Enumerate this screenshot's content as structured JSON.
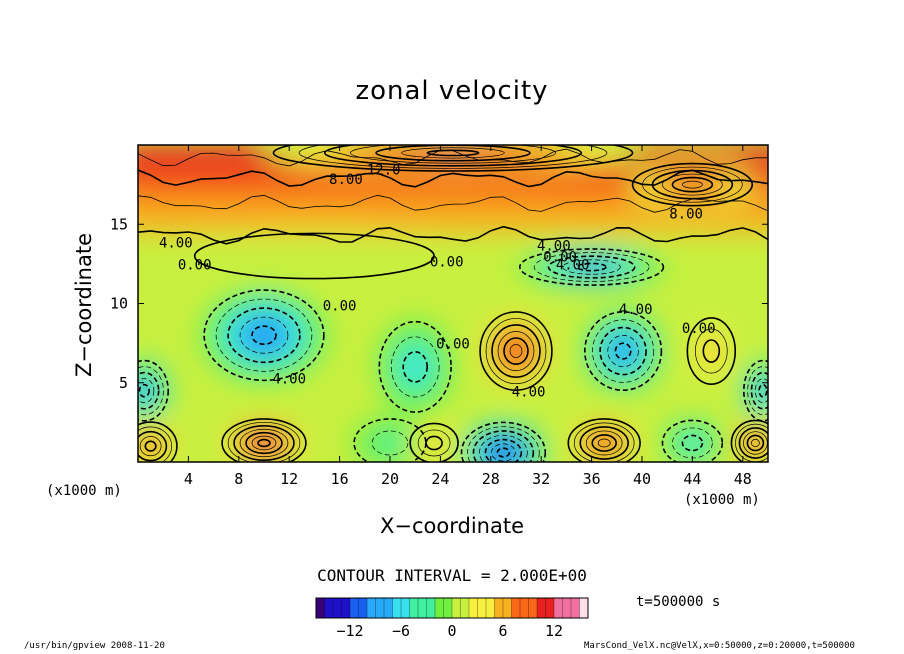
{
  "colors": {
    "background": "#ffffff",
    "axis": "#000000",
    "colormap": [
      "#3a007a",
      "#1e10c8",
      "#1860f0",
      "#28a8f8",
      "#38e0f0",
      "#40f0a0",
      "#70f040",
      "#c8f040",
      "#f8f040",
      "#f8b020",
      "#f86818",
      "#e82020",
      "#f070a0",
      "#fbe0ea"
    ]
  },
  "chart_data": {
    "type": "heatmap",
    "title": "zonal velocity",
    "xlabel": "X−coordinate",
    "ylabel": "Z−coordinate",
    "x_unit_label": "(x1000 m)",
    "x_unit_label_right": "(x1000 m)",
    "xlim": [
      0,
      50
    ],
    "ylim": [
      0,
      20
    ],
    "xticks": [
      4,
      8,
      12,
      16,
      20,
      24,
      28,
      32,
      36,
      40,
      44,
      48
    ],
    "yticks": [
      5,
      10,
      15
    ],
    "contour_interval": "CONTOUR INTERVAL = 2.000E+00",
    "colorbar": {
      "min": -16,
      "max": 16,
      "step": 1,
      "ticks": [
        -12,
        -6,
        0,
        6,
        12
      ]
    },
    "time_label": "t=500000 s",
    "features": [
      {
        "x": 10,
        "z": 8,
        "value": -10,
        "rx": 5,
        "rz": 3
      },
      {
        "x": 30,
        "z": 7,
        "value": 12,
        "rx": 3,
        "rz": 2.6
      },
      {
        "x": 38.5,
        "z": 7,
        "value": -10,
        "rx": 3.2,
        "rz": 2.6
      },
      {
        "x": 45.5,
        "z": 7,
        "value": 6,
        "rx": 2,
        "rz": 2.2
      },
      {
        "x": 22,
        "z": 6,
        "value": -6,
        "rx": 3,
        "rz": 3
      },
      {
        "x": 0.5,
        "z": 4.5,
        "value": -10,
        "rx": 2,
        "rz": 2
      },
      {
        "x": 49.6,
        "z": 4.5,
        "value": -10,
        "rx": 1.6,
        "rz": 2
      },
      {
        "x": 1,
        "z": 1,
        "value": 10,
        "rx": 2.2,
        "rz": 1.6
      },
      {
        "x": 10,
        "z": 1.2,
        "value": 14,
        "rx": 3.5,
        "rz": 1.6
      },
      {
        "x": 20,
        "z": 1.2,
        "value": -4,
        "rx": 3,
        "rz": 1.6
      },
      {
        "x": 23.5,
        "z": 1.2,
        "value": 6,
        "rx": 2,
        "rz": 1.3
      },
      {
        "x": 29,
        "z": 0.6,
        "value": -14,
        "rx": 3.5,
        "rz": 2
      },
      {
        "x": 37,
        "z": 1.2,
        "value": 12,
        "rx": 3,
        "rz": 1.6
      },
      {
        "x": 44,
        "z": 1.2,
        "value": -6,
        "rx": 2.5,
        "rz": 1.5
      },
      {
        "x": 49,
        "z": 1.2,
        "value": 12,
        "rx": 2,
        "rz": 1.5
      },
      {
        "x": 36,
        "z": 12.3,
        "value": -10,
        "rx": 6,
        "rz": 1.2
      },
      {
        "x": 14,
        "z": 13,
        "value": 0,
        "rx": 10,
        "rz": 1.5
      },
      {
        "x": 44,
        "z": 17.5,
        "value": 12,
        "rx": 5,
        "rz": 1.4
      },
      {
        "x": 25,
        "z": 19.5,
        "value": 14,
        "rx": 15,
        "rz": 1.2
      }
    ],
    "contour_labels": [
      {
        "text": "12.0",
        "x": 19.5,
        "z": 18.4
      },
      {
        "text": "8.00",
        "x": 16.5,
        "z": 17.8
      },
      {
        "text": "8.00",
        "x": 43.5,
        "z": 15.6
      },
      {
        "text": "4.00",
        "x": 3,
        "z": 13.8
      },
      {
        "text": "0.00",
        "x": 4.5,
        "z": 12.4
      },
      {
        "text": "0.00",
        "x": 24.5,
        "z": 12.6
      },
      {
        "text": "4.00",
        "x": 33,
        "z": 13.6
      },
      {
        "text": "0.00",
        "x": 33.5,
        "z": 12.9
      },
      {
        "text": "4.00",
        "x": 34.5,
        "z": 12.4
      },
      {
        "text": "0.00",
        "x": 16,
        "z": 9.8
      },
      {
        "text": "4.00",
        "x": 39.5,
        "z": 9.6
      },
      {
        "text": "0.00",
        "x": 44.5,
        "z": 8.4
      },
      {
        "text": "0.00",
        "x": 25,
        "z": 7.4
      },
      {
        "text": "4.00",
        "x": 12,
        "z": 5.2
      },
      {
        "text": "4.00",
        "x": 31,
        "z": 4.4
      }
    ]
  },
  "footer": {
    "left": "/usr/bin/gpview  2008-11-20",
    "right": "MarsCond_VelX.nc@VelX,x=0:50000,z=0:20000,t=500000"
  }
}
